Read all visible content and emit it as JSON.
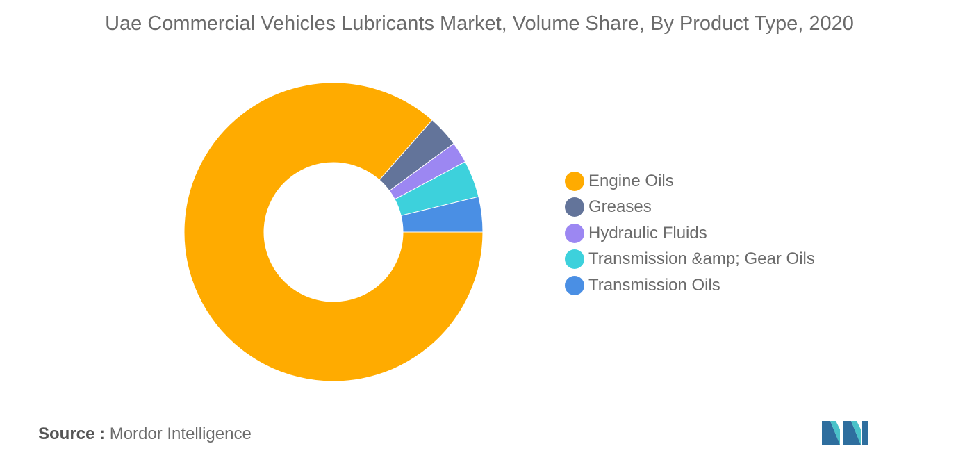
{
  "title": "Uae Commercial Vehicles Lubricants Market, Volume Share, By Product Type, 2020",
  "source": {
    "label": "Source :",
    "value": "Mordor Intelligence"
  },
  "colors": {
    "engine_oils": "#FFAB00",
    "greases": "#63749A",
    "hydraulic_fluids": "#9C87F2",
    "transmission_gear_oils": "#3DD1DC",
    "transmission_oils": "#4A8FE4"
  },
  "chart_data": {
    "type": "pie",
    "style": "donut",
    "title": "Uae Commercial Vehicles Lubricants Market, Volume Share, By Product Type, 2020",
    "legend_position": "right",
    "categories": [
      "Engine Oils",
      "Greases",
      "Hydraulic Fluids",
      "Transmission &amp; Gear Oils",
      "Transmission Oils"
    ],
    "values": [
      86.5,
      3.4,
      2.3,
      4.0,
      3.8
    ],
    "unit": "%"
  }
}
